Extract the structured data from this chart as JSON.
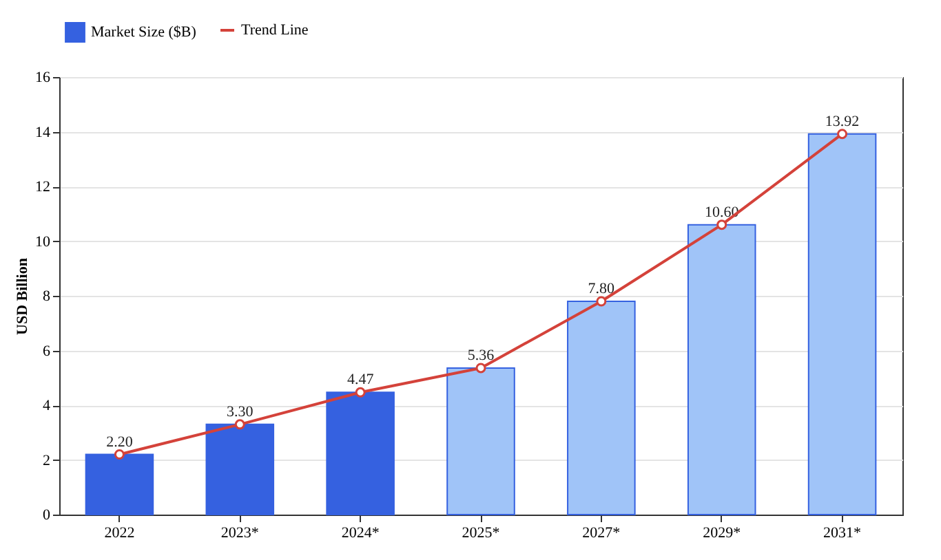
{
  "chart_data": {
    "type": "bar",
    "ylabel": "USD Billion",
    "categories": [
      "2022",
      "2023*",
      "2024*",
      "2025*",
      "2027*",
      "2029*",
      "2031*"
    ],
    "series": [
      {
        "name": "Market Size ($B)",
        "colors": [
          "#3561e0",
          "#3561e0",
          "#3561e0",
          "#a0c4f8",
          "#a0c4f8",
          "#a0c4f8",
          "#a0c4f8"
        ],
        "values": [
          2.2,
          3.3,
          4.47,
          5.36,
          7.8,
          10.6,
          13.92
        ],
        "value_labels": [
          "2.20",
          "3.30",
          "4.47",
          "5.36",
          "7.80",
          "10.60",
          "13.92"
        ]
      },
      {
        "name": "Trend Line",
        "type": "line",
        "color": "#d4423a",
        "marker": "circle",
        "values": [
          2.2,
          3.3,
          4.47,
          5.36,
          7.8,
          10.6,
          13.92
        ]
      }
    ],
    "ylim": [
      0,
      16
    ],
    "yticks": [
      0,
      2,
      4,
      6,
      8,
      10,
      12,
      14,
      16
    ],
    "grid": "y",
    "legend": "top"
  }
}
